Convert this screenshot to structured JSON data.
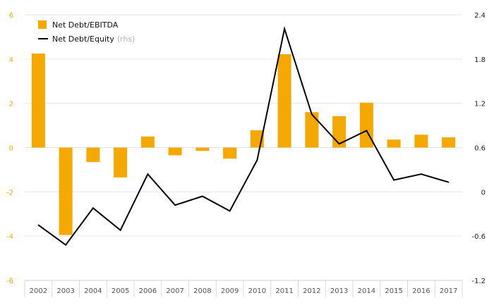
{
  "chart_data": {
    "type": "bar+line",
    "categories": [
      "2002",
      "2003",
      "2004",
      "2005",
      "2006",
      "2007",
      "2008",
      "2009",
      "2010",
      "2011",
      "2012",
      "2013",
      "2014",
      "2015",
      "2016",
      "2017"
    ],
    "series": [
      {
        "name": "Net Debt/EBITDA",
        "type": "bar",
        "axis": "left",
        "color": "#f5a800",
        "values": [
          4.25,
          -3.95,
          -0.65,
          -1.35,
          0.5,
          -0.35,
          -0.15,
          -0.5,
          0.78,
          4.22,
          1.6,
          1.42,
          2.03,
          0.36,
          0.58,
          0.46
        ]
      },
      {
        "name": "Net Debt/Equity",
        "name_suffix": "(rhs)",
        "type": "line",
        "axis": "right",
        "color": "#000000",
        "values": [
          -0.45,
          -0.72,
          -0.22,
          -0.52,
          0.24,
          -0.18,
          -0.06,
          -0.26,
          0.43,
          2.21,
          1.05,
          0.65,
          0.83,
          0.16,
          0.24,
          0.13
        ]
      }
    ],
    "y_left": {
      "ylim": [
        -6,
        6
      ],
      "ticks": [
        "6",
        "4",
        "2",
        "0",
        "-2",
        "-4",
        "-6"
      ],
      "tick_values": [
        6,
        4,
        2,
        0,
        -2,
        -4,
        -6
      ],
      "color": "#f5a800"
    },
    "y_right": {
      "ylim": [
        -1.2,
        2.4
      ],
      "ticks": [
        "2.4",
        "1.8",
        "1.2",
        "0.6",
        "0",
        "-0.6",
        "-1.2"
      ],
      "tick_values": [
        2.4,
        1.8,
        1.2,
        0.6,
        0,
        -0.6,
        -1.2
      ]
    },
    "grid": true,
    "legend_position": "top-left"
  }
}
